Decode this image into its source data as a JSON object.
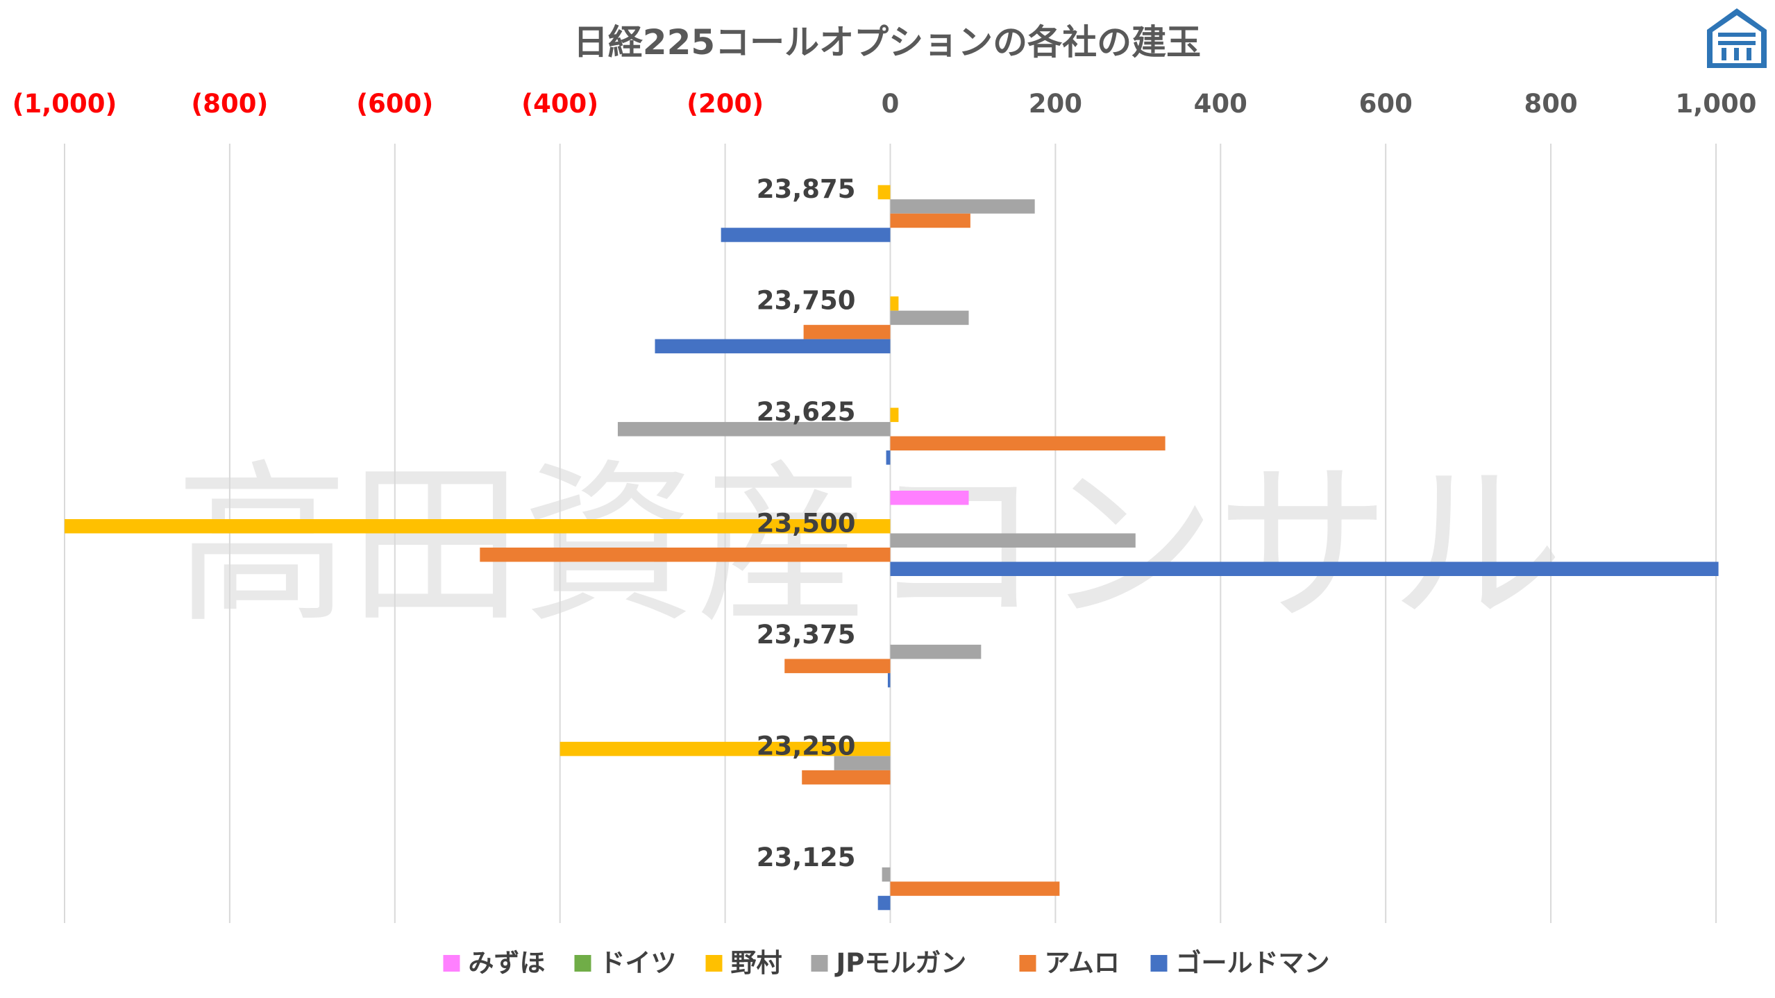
{
  "chart_data": {
    "type": "bar",
    "orientation": "horizontal",
    "title": "日経225コールオプションの各社の建玉",
    "categories": [
      "23,875",
      "23,750",
      "23,625",
      "23,500",
      "23,375",
      "23,250",
      "23,125"
    ],
    "series": [
      {
        "name": "みずほ",
        "color": "#FF80FF",
        "values": [
          0,
          0,
          0,
          95,
          0,
          0,
          0
        ]
      },
      {
        "name": "ドイツ",
        "color": "#70AD47",
        "values": [
          0,
          0,
          0,
          0,
          0,
          0,
          0
        ]
      },
      {
        "name": "野村",
        "color": "#FFC000",
        "values": [
          -15,
          10,
          10,
          -1000,
          0,
          -400,
          0
        ]
      },
      {
        "name": "JPモルガン",
        "color": "#A5A5A5",
        "values": [
          175,
          95,
          -330,
          297,
          110,
          -68,
          -10
        ]
      },
      {
        "name": "アムロ",
        "color": "#ED7D31",
        "values": [
          97,
          -105,
          333,
          -497,
          -128,
          -107,
          205
        ]
      },
      {
        "name": "ゴールドマン",
        "color": "#4472C4",
        "values": [
          -205,
          -285,
          -5,
          1003,
          -3,
          0,
          -15
        ]
      }
    ],
    "xlim": [
      -1000,
      1000
    ],
    "x_ticks": [
      {
        "value": -1000,
        "label": "(1,000)"
      },
      {
        "value": -800,
        "label": "(800)"
      },
      {
        "value": -600,
        "label": "(600)"
      },
      {
        "value": -400,
        "label": "(400)"
      },
      {
        "value": -200,
        "label": "(200)"
      },
      {
        "value": 0,
        "label": "0"
      },
      {
        "value": 200,
        "label": "200"
      },
      {
        "value": 400,
        "label": "400"
      },
      {
        "value": 600,
        "label": "600"
      },
      {
        "value": 800,
        "label": "800"
      },
      {
        "value": 1000,
        "label": "1,000"
      }
    ],
    "negative_tick_color": "#FF0000",
    "positive_tick_color": "#595959",
    "axis_position": "top",
    "grid": true,
    "legend": "bottom",
    "watermark": "高田資産コンサル"
  }
}
